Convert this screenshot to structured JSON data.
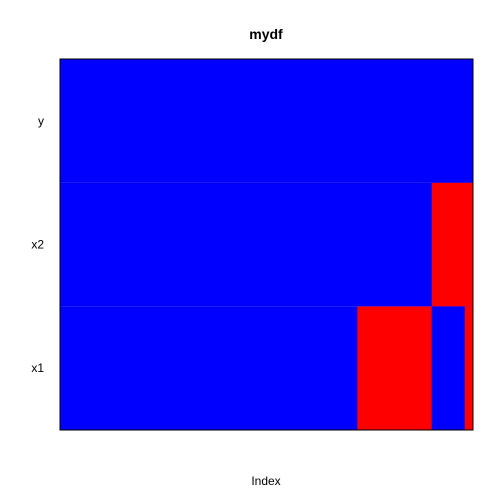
{
  "chart_data": {
    "type": "heatmap",
    "title": "mydf",
    "xlabel": "Index",
    "ylabel": "",
    "rows": [
      "x1",
      "x2",
      "y"
    ],
    "n_index": 100,
    "colors": {
      "observed": "#0000ff",
      "missing": "#ff0000"
    },
    "missing_index_ranges": {
      "x1": [
        [
          73,
          90
        ],
        [
          99,
          100
        ]
      ],
      "x2": [
        [
          91,
          100
        ]
      ],
      "y": []
    }
  }
}
